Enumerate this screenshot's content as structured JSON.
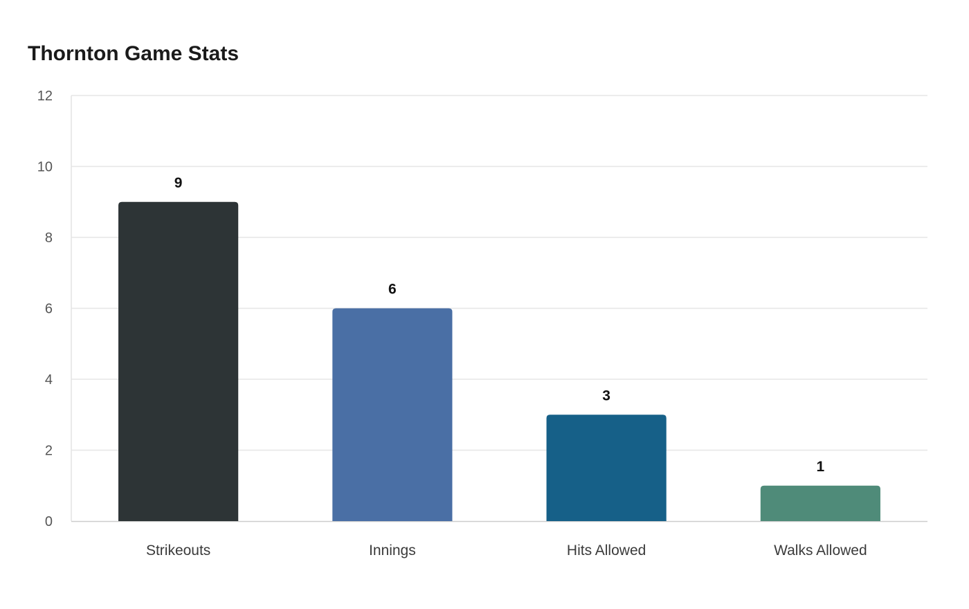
{
  "chart_data": {
    "type": "bar",
    "title": "Thornton Game Stats",
    "xlabel": "",
    "ylabel": "",
    "categories": [
      "Strikeouts",
      "Innings",
      "Hits Allowed",
      "Walks Allowed"
    ],
    "values": [
      9,
      6,
      3,
      1
    ],
    "colors": [
      "#2d3436",
      "#4a6fa5",
      "#166088",
      "#4f8b79"
    ],
    "ylim": [
      0,
      12
    ],
    "yticks": [
      0,
      2,
      4,
      6,
      8,
      10,
      12
    ],
    "data_labels": true,
    "grid": true,
    "legend": "none"
  }
}
